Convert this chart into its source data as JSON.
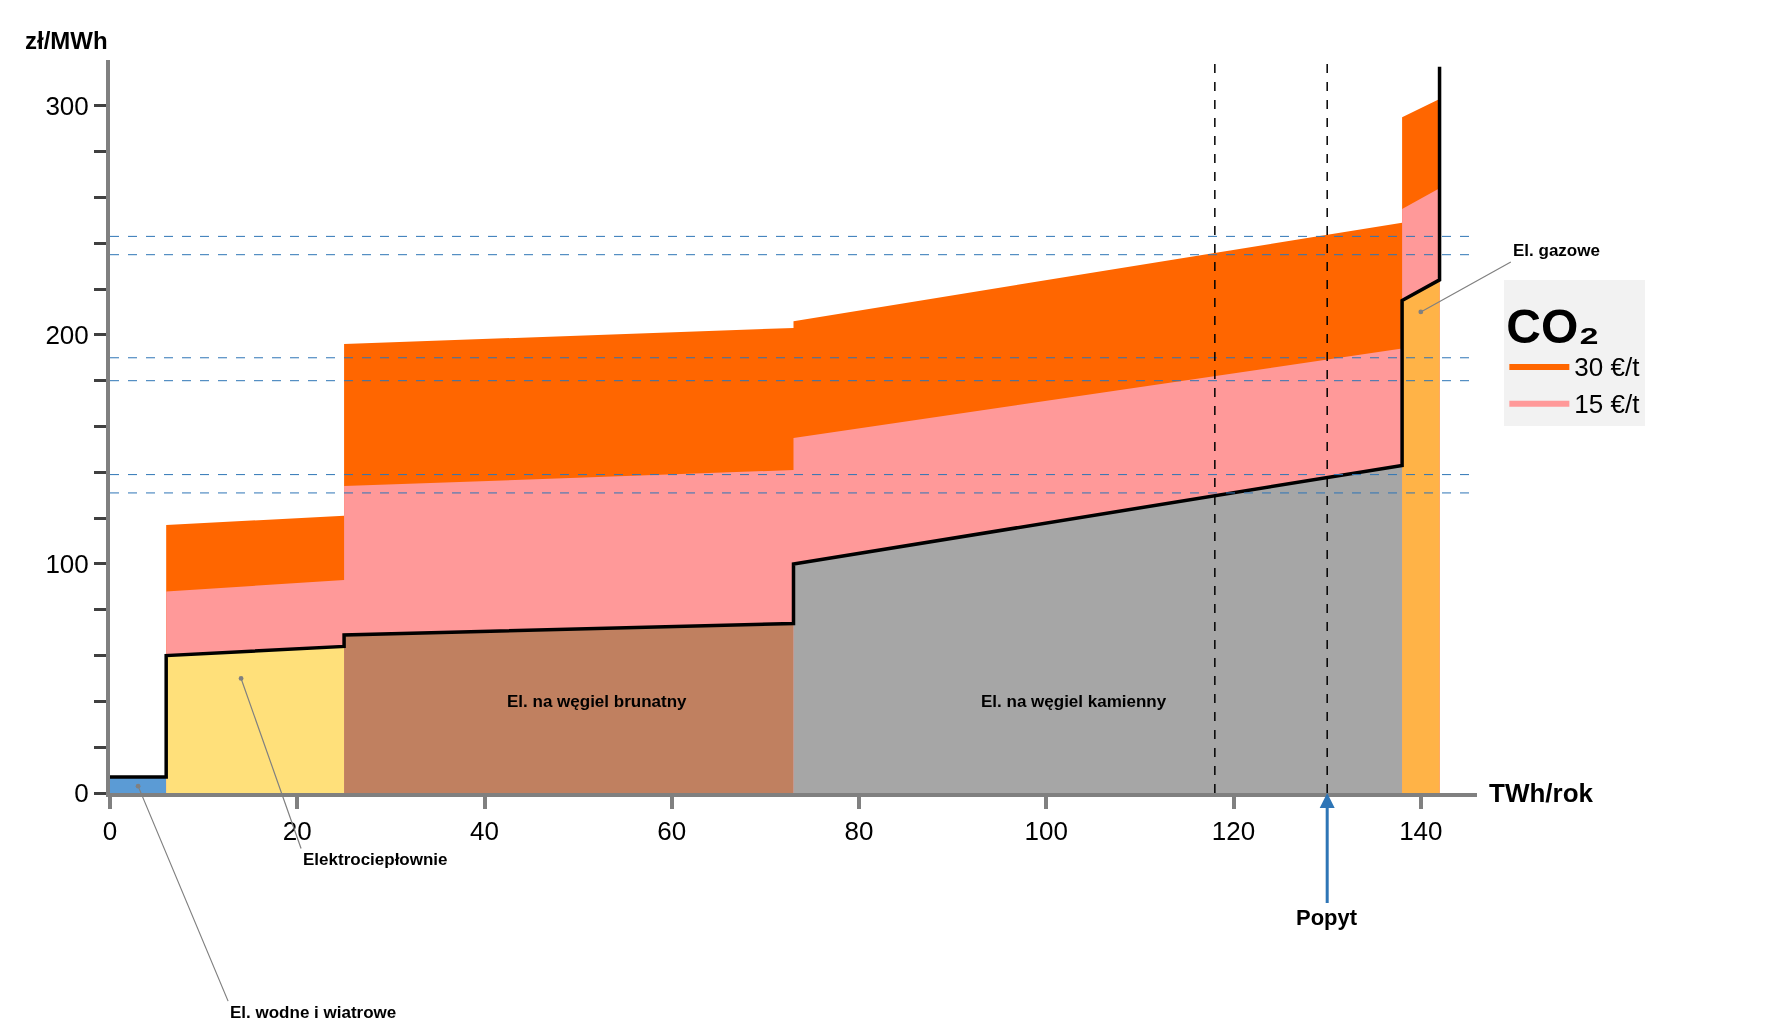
{
  "chart_data": {
    "type": "area",
    "xlabel": "TWh/rok",
    "ylabel": "zł/MWh",
    "legend_title": "CO₂",
    "legend": "right",
    "xlim": [
      0,
      146
    ],
    "ylim": [
      0,
      320
    ],
    "xticks": [
      0,
      20,
      40,
      60,
      80,
      100,
      120,
      140
    ],
    "yticks": [
      0,
      {
        "value": 20,
        "label": null
      },
      {
        "value": 40,
        "label": null
      },
      {
        "value": 60,
        "label": null
      },
      {
        "value": 80,
        "label": null
      },
      100,
      {
        "value": 120,
        "label": null
      },
      {
        "value": 140,
        "label": null
      },
      {
        "value": 160,
        "label": null
      },
      {
        "value": 180,
        "label": null
      },
      200,
      {
        "value": 220,
        "label": null
      },
      {
        "value": 240,
        "label": null
      },
      {
        "value": 260,
        "label": null
      },
      {
        "value": 280,
        "label": null
      },
      300
    ],
    "series": [
      {
        "name": "30 €/t",
        "color": "#ff6600",
        "x": [
          6,
          25,
          null,
          25,
          73,
          null,
          73,
          138,
          null,
          138,
          142
        ],
        "values": [
          117,
          121,
          null,
          196,
          203,
          null,
          206,
          249,
          null,
          295,
          303
        ]
      },
      {
        "name": "15 €/t",
        "color": "#ff9999",
        "x": [
          6,
          25,
          null,
          25,
          73,
          null,
          73,
          138,
          null,
          138,
          142
        ],
        "values": [
          88,
          93,
          null,
          134,
          141,
          null,
          155,
          194,
          null,
          255,
          264
        ]
      },
      {
        "color": "#5b9bd5",
        "x": [
          0,
          6
        ],
        "values": [
          7,
          7
        ]
      },
      {
        "color": "#ffe07a",
        "x": [
          6,
          25
        ],
        "values": [
          60,
          64
        ]
      },
      {
        "color": "#c08060",
        "x": [
          25,
          73
        ],
        "values": [
          69,
          74
        ]
      },
      {
        "color": "#a6a6a6",
        "x": [
          73,
          138
        ],
        "values": [
          100,
          143
        ]
      },
      {
        "color": "#ffb347",
        "x": [
          138,
          142
        ],
        "values": [
          215,
          224
        ]
      },
      {
        "type": "line",
        "color": "#000000",
        "x": [
          0,
          6,
          6,
          25,
          25,
          73,
          73,
          138,
          138,
          142,
          142
        ],
        "values": [
          7,
          7,
          60,
          64,
          69,
          74,
          100,
          143,
          215,
          224,
          317
        ]
      }
    ],
    "ref_lines": [
      {
        "axis": "y",
        "value": 243,
        "color": "#2e75b6",
        "line_style": "dashed"
      },
      {
        "axis": "y",
        "value": 235,
        "color": "#2e75b6",
        "line_style": "dashed"
      },
      {
        "axis": "y",
        "value": 190,
        "color": "#2e75b6",
        "line_style": "dashed"
      },
      {
        "axis": "y",
        "value": 180,
        "color": "#2e75b6",
        "line_style": "dashed"
      },
      {
        "axis": "y",
        "value": 139,
        "color": "#2e75b6",
        "line_style": "dashed"
      },
      {
        "axis": "y",
        "value": 131,
        "color": "#2e75b6",
        "line_style": "dashed"
      },
      {
        "axis": "x",
        "value": 118,
        "color": "#000000",
        "line_style": "dashed"
      },
      {
        "axis": "x",
        "value": 130,
        "color": "#000000",
        "line_style": "dashed"
      }
    ],
    "annotations": [
      "El. na węgiel brunatny",
      "El. na węgiel kamienny",
      "El. gazowe",
      "Elektrociepłownie",
      "El. wodne i wiatrowe",
      {
        "text": "Popyt",
        "x": 130,
        "y": 0
      }
    ]
  }
}
